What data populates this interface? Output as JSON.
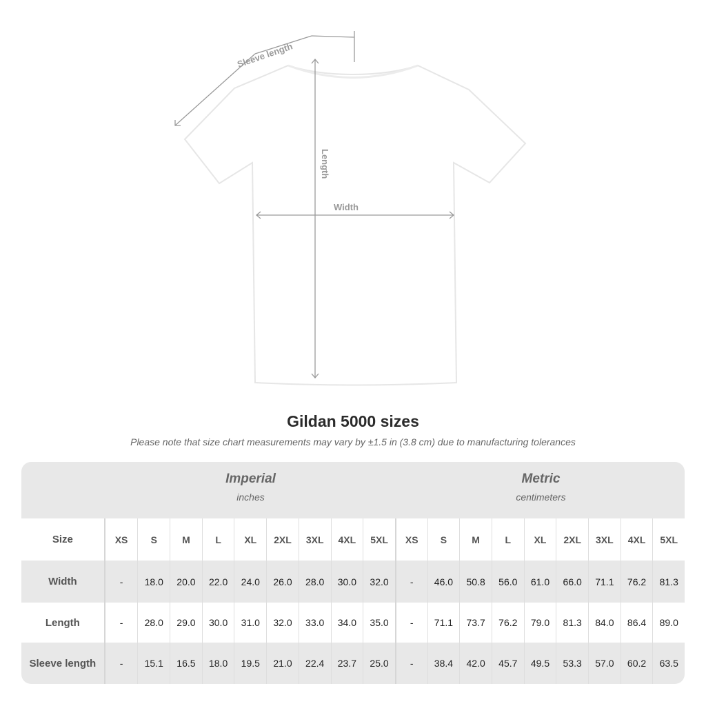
{
  "diagram": {
    "sleeve_label": "Sleeve length",
    "length_label": "Length",
    "width_label": "Width",
    "shirt_color": "#ffffff",
    "line_color": "#9a9a9a"
  },
  "title": "Gildan 5000 sizes",
  "note": "Please note that size chart measurements may vary by ±1.5 in (3.8 cm) due to manufacturing tolerances",
  "table": {
    "imperial": {
      "heading": "Imperial",
      "unit": "inches"
    },
    "metric": {
      "heading": "Metric",
      "unit": "centimeters"
    },
    "size_label": "Size",
    "sizes": [
      "XS",
      "S",
      "M",
      "L",
      "XL",
      "2XL",
      "3XL",
      "4XL",
      "5XL"
    ],
    "rows": [
      {
        "label": "Width",
        "imperial": [
          "-",
          "18.0",
          "20.0",
          "22.0",
          "24.0",
          "26.0",
          "28.0",
          "30.0",
          "32.0"
        ],
        "metric": [
          "-",
          "46.0",
          "50.8",
          "56.0",
          "61.0",
          "66.0",
          "71.1",
          "76.2",
          "81.3"
        ]
      },
      {
        "label": "Length",
        "imperial": [
          "-",
          "28.0",
          "29.0",
          "30.0",
          "31.0",
          "32.0",
          "33.0",
          "34.0",
          "35.0"
        ],
        "metric": [
          "-",
          "71.1",
          "73.7",
          "76.2",
          "79.0",
          "81.3",
          "84.0",
          "86.4",
          "89.0"
        ]
      },
      {
        "label": "Sleeve length",
        "imperial": [
          "-",
          "15.1",
          "16.5",
          "18.0",
          "19.5",
          "21.0",
          "22.4",
          "23.7",
          "25.0"
        ],
        "metric": [
          "-",
          "38.4",
          "42.0",
          "45.7",
          "49.5",
          "53.3",
          "57.0",
          "60.2",
          "63.5"
        ]
      }
    ]
  }
}
